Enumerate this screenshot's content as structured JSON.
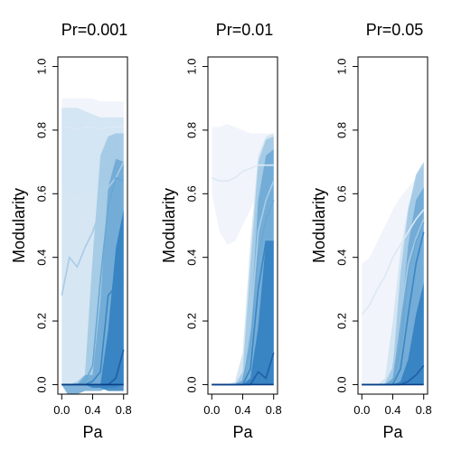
{
  "chart_data": [
    {
      "type": "area",
      "title": "Pr=0.001",
      "xlabel": "Pa",
      "ylabel": "Modularity",
      "xlim": [
        -0.05,
        0.85
      ],
      "ylim": [
        -0.03,
        1.03
      ],
      "xticks": [
        0.0,
        0.4,
        0.8
      ],
      "xtick_labels": [
        "0.0",
        "0.4",
        "0.8"
      ],
      "yticks": [
        0.0,
        0.2,
        0.4,
        0.6,
        0.8,
        1.0
      ],
      "ytick_labels": [
        "0.0",
        "0.2",
        "0.4",
        "0.6",
        "0.8",
        "1.0"
      ],
      "x": [
        0.0,
        0.1,
        0.2,
        0.3,
        0.4,
        0.5,
        0.6,
        0.7,
        0.8
      ],
      "series": [
        {
          "color": "#eef3fa",
          "lower": [
            0.62,
            0.6,
            0.6,
            0.6,
            0.61,
            0.62,
            0.63,
            0.63,
            0.63
          ],
          "upper": [
            0.9,
            0.9,
            0.9,
            0.9,
            0.9,
            0.89,
            0.89,
            0.89,
            0.89
          ],
          "median": [
            0.81,
            0.81,
            0.8,
            0.81,
            0.81,
            0.8,
            0.81,
            0.81,
            0.81
          ]
        },
        {
          "color": "#cfe2f1",
          "lower": [
            0.0,
            0.0,
            0.0,
            0.0,
            0.0,
            0.0,
            0.0,
            0.0,
            0.0
          ],
          "upper": [
            0.87,
            0.87,
            0.87,
            0.86,
            0.85,
            0.84,
            0.84,
            0.84,
            0.84
          ],
          "median": [
            0.28,
            0.4,
            0.37,
            0.43,
            0.48,
            0.55,
            0.62,
            0.65,
            0.7
          ]
        },
        {
          "color": "#9ec7e3",
          "lower": [
            0.0,
            0.0,
            0.0,
            0.0,
            0.0,
            0.0,
            0.0,
            0.0,
            0.0
          ],
          "upper": [
            0.0,
            0.0,
            0.01,
            0.03,
            0.4,
            0.72,
            0.78,
            0.79,
            0.79
          ],
          "median": [
            0.0,
            0.0,
            0.0,
            0.01,
            0.06,
            0.33,
            0.56,
            0.65,
            0.64
          ]
        },
        {
          "color": "#6aa7d3",
          "lower": [
            0.0,
            -0.04,
            -0.03,
            -0.02,
            -0.02,
            -0.02,
            -0.01,
            -0.01,
            0.0
          ],
          "upper": [
            0.0,
            0.0,
            0.0,
            0.03,
            0.03,
            0.26,
            0.62,
            0.71,
            0.7
          ],
          "median": [
            0.0,
            0.0,
            0.0,
            0.0,
            0.01,
            0.04,
            0.28,
            0.31,
            0.33
          ]
        },
        {
          "color": "#2f7dbf",
          "lower": [
            0.0,
            0.0,
            0.0,
            0.0,
            -0.01,
            -0.01,
            -0.02,
            -0.02,
            -0.02
          ],
          "upper": [
            0.0,
            0.0,
            0.0,
            0.0,
            0.0,
            0.0,
            0.17,
            0.43,
            0.55
          ],
          "median": [
            0.0,
            0.0,
            0.0,
            0.0,
            0.0,
            0.0,
            0.0,
            0.02,
            0.11
          ]
        },
        {
          "color": "#0b4f9e",
          "lower": [
            0.0,
            0.0,
            0.0,
            0.0,
            0.0,
            0.0,
            0.0,
            0.0,
            0.0
          ],
          "upper": [
            0.0,
            0.0,
            0.0,
            0.0,
            0.0,
            0.0,
            0.0,
            0.0,
            0.0
          ],
          "median": [
            0.0,
            0.0,
            0.0,
            0.0,
            0.0,
            0.0,
            0.0,
            0.0,
            0.0
          ]
        }
      ]
    },
    {
      "type": "area",
      "title": "Pr=0.01",
      "xlabel": "Pa",
      "ylabel": "Modularity",
      "xlim": [
        -0.05,
        0.85
      ],
      "ylim": [
        -0.03,
        1.03
      ],
      "xticks": [
        0.0,
        0.4,
        0.8
      ],
      "xtick_labels": [
        "0.0",
        "0.4",
        "0.8"
      ],
      "yticks": [
        0.0,
        0.2,
        0.4,
        0.6,
        0.8,
        1.0
      ],
      "ytick_labels": [
        "0.0",
        "0.2",
        "0.4",
        "0.6",
        "0.8",
        "1.0"
      ],
      "x": [
        0.0,
        0.1,
        0.2,
        0.3,
        0.4,
        0.5,
        0.6,
        0.7,
        0.8
      ],
      "series": [
        {
          "color": "#eef3fa",
          "lower": [
            0.6,
            0.48,
            0.44,
            0.45,
            0.5,
            0.55,
            0.6,
            0.65,
            0.68
          ],
          "upper": [
            0.81,
            0.81,
            0.82,
            0.81,
            0.8,
            0.79,
            0.79,
            0.79,
            0.79
          ],
          "median": [
            0.65,
            0.64,
            0.64,
            0.65,
            0.67,
            0.68,
            0.69,
            0.69,
            0.69
          ]
        },
        {
          "color": "#cfe2f1",
          "lower": [
            0.0,
            0.0,
            0.0,
            0.0,
            0.0,
            0.0,
            0.0,
            0.0,
            0.0
          ],
          "upper": [
            0.0,
            0.0,
            0.0,
            0.01,
            0.1,
            0.45,
            0.72,
            0.78,
            0.79
          ],
          "median": [
            0.0,
            0.0,
            0.0,
            0.0,
            0.02,
            0.18,
            0.48,
            0.58,
            0.64
          ]
        },
        {
          "color": "#9ec7e3",
          "lower": [
            0.0,
            0.0,
            0.0,
            0.0,
            0.0,
            0.0,
            0.0,
            0.0,
            0.0
          ],
          "upper": [
            0.0,
            0.0,
            0.0,
            0.0,
            0.04,
            0.38,
            0.7,
            0.77,
            0.78
          ],
          "median": [
            0.0,
            0.0,
            0.0,
            0.0,
            0.01,
            0.12,
            0.4,
            0.52,
            0.58
          ]
        },
        {
          "color": "#6aa7d3",
          "lower": [
            0.0,
            0.0,
            0.0,
            0.0,
            0.0,
            0.0,
            0.0,
            0.0,
            0.0
          ],
          "upper": [
            0.0,
            0.0,
            0.0,
            0.0,
            0.01,
            0.18,
            0.58,
            0.72,
            0.74
          ],
          "median": [
            0.0,
            0.0,
            0.0,
            0.0,
            0.0,
            0.05,
            0.3,
            0.45,
            0.45
          ]
        },
        {
          "color": "#2f7dbf",
          "lower": [
            0.0,
            0.0,
            0.0,
            0.0,
            0.0,
            0.0,
            0.0,
            0.0,
            0.0
          ],
          "upper": [
            0.0,
            0.0,
            0.0,
            0.0,
            0.0,
            0.02,
            0.18,
            0.45,
            0.45
          ],
          "median": [
            0.0,
            0.0,
            0.0,
            0.0,
            0.0,
            0.0,
            0.04,
            0.02,
            0.1
          ]
        },
        {
          "color": "#0b4f9e",
          "lower": [
            0.0,
            0.0,
            0.0,
            0.0,
            0.0,
            0.0,
            0.0,
            0.0,
            0.0
          ],
          "upper": [
            0.0,
            0.0,
            0.0,
            0.0,
            0.0,
            0.0,
            0.0,
            0.0,
            0.0
          ],
          "median": [
            0.0,
            0.0,
            0.0,
            0.0,
            0.0,
            0.0,
            0.0,
            0.0,
            0.0
          ]
        }
      ]
    },
    {
      "type": "area",
      "title": "Pr=0.05",
      "xlabel": "Pa",
      "ylabel": "Modularity",
      "xlim": [
        -0.05,
        0.85
      ],
      "ylim": [
        -0.03,
        1.03
      ],
      "xticks": [
        0.0,
        0.4,
        0.8
      ],
      "xtick_labels": [
        "0.0",
        "0.4",
        "0.8"
      ],
      "yticks": [
        0.0,
        0.2,
        0.4,
        0.6,
        0.8,
        1.0
      ],
      "ytick_labels": [
        "0.0",
        "0.2",
        "0.4",
        "0.6",
        "0.8",
        "1.0"
      ],
      "x": [
        0.0,
        0.1,
        0.2,
        0.3,
        0.4,
        0.5,
        0.6,
        0.7,
        0.8
      ],
      "series": [
        {
          "color": "#eef3fa",
          "lower": [
            0.0,
            0.0,
            0.0,
            0.0,
            0.0,
            0.0,
            0.0,
            0.0,
            0.0
          ],
          "upper": [
            0.38,
            0.4,
            0.45,
            0.5,
            0.55,
            0.59,
            0.62,
            0.65,
            0.68
          ],
          "median": [
            0.22,
            0.25,
            0.3,
            0.34,
            0.4,
            0.44,
            0.48,
            0.52,
            0.55
          ]
        },
        {
          "color": "#cfe2f1",
          "lower": [
            0.0,
            0.0,
            0.0,
            0.0,
            0.0,
            0.0,
            0.0,
            0.0,
            0.0
          ],
          "upper": [
            0.0,
            0.0,
            0.0,
            0.02,
            0.2,
            0.42,
            0.56,
            0.64,
            0.69
          ],
          "median": [
            0.0,
            0.0,
            0.0,
            0.0,
            0.05,
            0.22,
            0.38,
            0.46,
            0.52
          ]
        },
        {
          "color": "#9ec7e3",
          "lower": [
            0.0,
            0.0,
            0.0,
            0.0,
            0.0,
            0.0,
            0.0,
            0.0,
            0.0
          ],
          "upper": [
            0.0,
            0.0,
            0.0,
            0.0,
            0.05,
            0.35,
            0.55,
            0.66,
            0.7
          ],
          "median": [
            0.0,
            0.0,
            0.0,
            0.0,
            0.01,
            0.12,
            0.35,
            0.45,
            0.51
          ]
        },
        {
          "color": "#6aa7d3",
          "lower": [
            0.0,
            0.0,
            0.0,
            0.0,
            0.0,
            0.0,
            0.0,
            0.0,
            0.0
          ],
          "upper": [
            0.0,
            0.0,
            0.0,
            0.0,
            0.02,
            0.2,
            0.44,
            0.58,
            0.62
          ],
          "median": [
            0.0,
            0.0,
            0.0,
            0.0,
            0.0,
            0.05,
            0.22,
            0.38,
            0.48
          ]
        },
        {
          "color": "#2f7dbf",
          "lower": [
            0.0,
            0.0,
            0.0,
            0.0,
            0.0,
            0.0,
            0.0,
            0.0,
            0.0
          ],
          "upper": [
            0.0,
            0.0,
            0.0,
            0.0,
            0.0,
            0.01,
            0.08,
            0.22,
            0.32
          ],
          "median": [
            0.0,
            0.0,
            0.0,
            0.0,
            0.0,
            0.0,
            0.01,
            0.03,
            0.06
          ]
        },
        {
          "color": "#0b4f9e",
          "lower": [
            0.0,
            0.0,
            0.0,
            0.0,
            0.0,
            0.0,
            0.0,
            0.0,
            0.0
          ],
          "upper": [
            0.0,
            0.0,
            0.0,
            0.0,
            0.0,
            0.0,
            0.0,
            0.0,
            0.0
          ],
          "median": [
            0.0,
            0.0,
            0.0,
            0.0,
            0.0,
            0.0,
            0.0,
            0.0,
            0.0
          ]
        }
      ]
    }
  ]
}
